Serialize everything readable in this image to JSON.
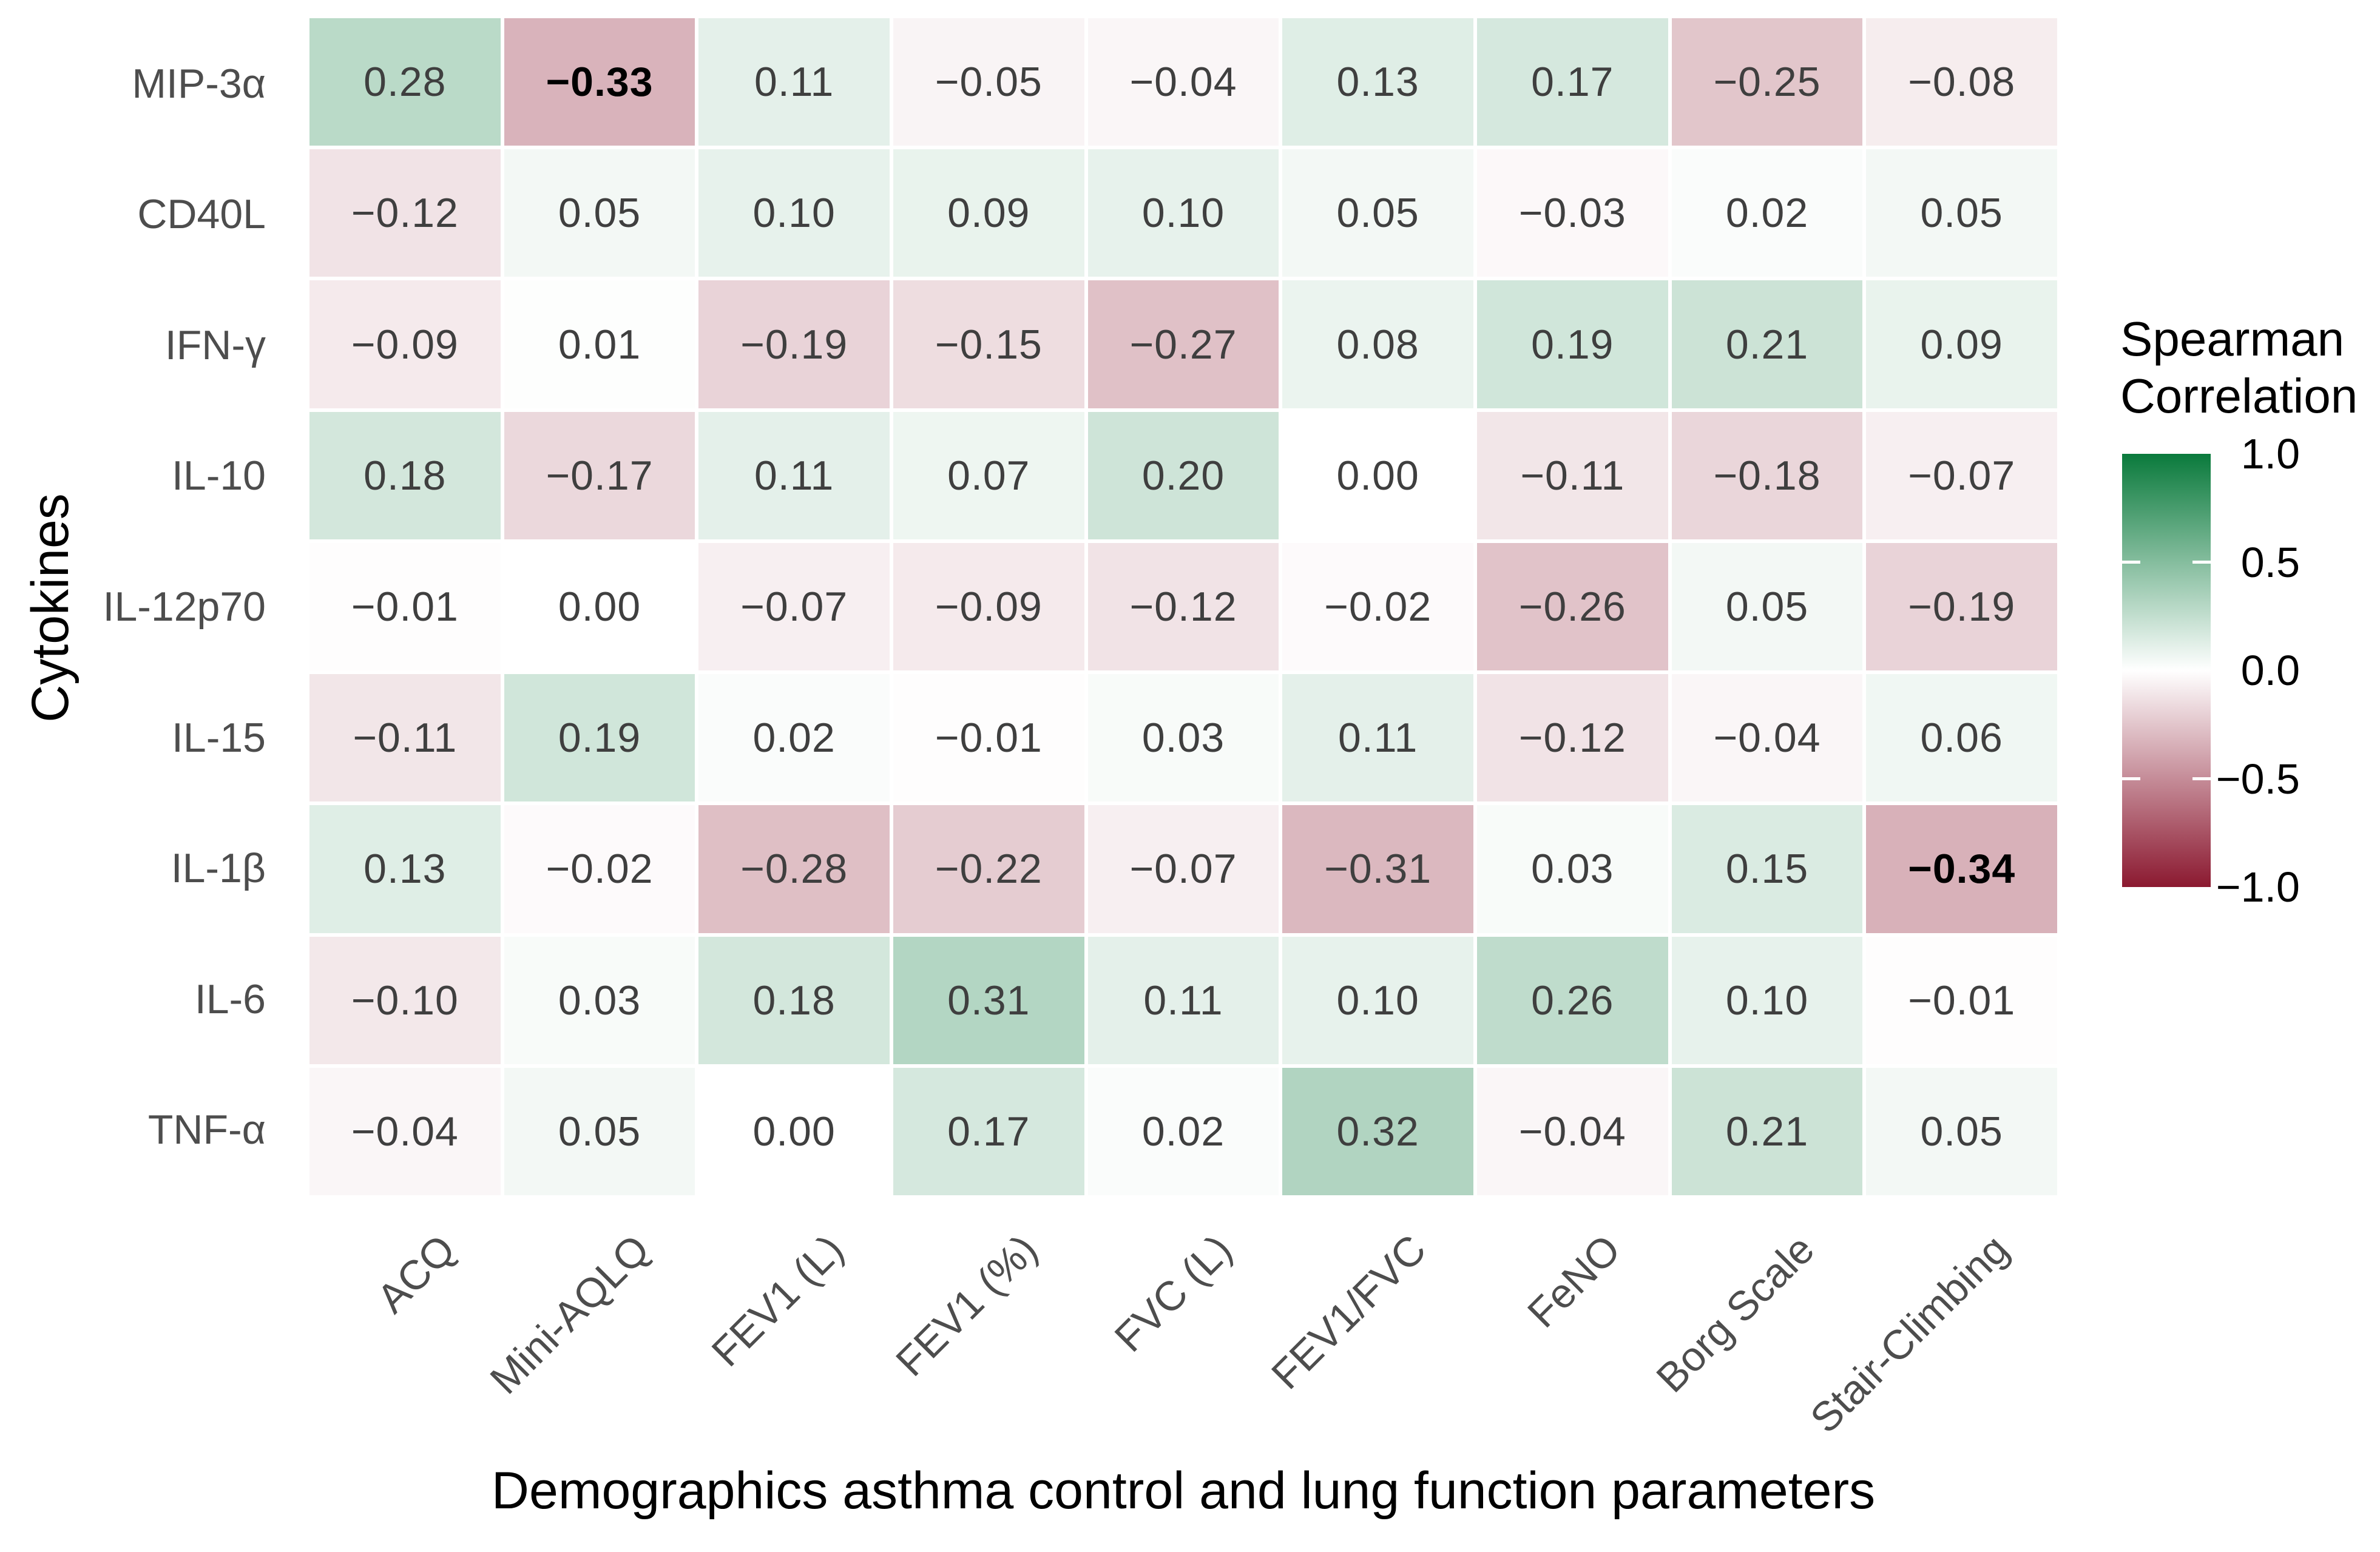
{
  "chart_data": {
    "type": "heatmap",
    "xlabel": "Demographics asthma control and lung function parameters",
    "ylabel": "Cytokines",
    "columns": [
      "ACQ",
      "Mini-AQLQ",
      "FEV1 (L)",
      "FEV1 (%)",
      "FVC (L)",
      "FEV1/FVC",
      "FeNO",
      "Borg Scale",
      "Stair-Climbing"
    ],
    "rows": [
      "MIP-3α",
      "CD40L",
      "IFN-γ",
      "IL-10",
      "IL-12p70",
      "IL-15",
      "IL-1β",
      "IL-6",
      "TNF-α"
    ],
    "values": [
      [
        0.28,
        -0.33,
        0.11,
        -0.05,
        -0.04,
        0.13,
        0.17,
        -0.25,
        -0.08
      ],
      [
        -0.12,
        0.05,
        0.1,
        0.09,
        0.1,
        0.05,
        -0.03,
        0.02,
        0.05
      ],
      [
        -0.09,
        0.01,
        -0.19,
        -0.15,
        -0.27,
        0.08,
        0.19,
        0.21,
        0.09
      ],
      [
        0.18,
        -0.17,
        0.11,
        0.07,
        0.2,
        0.0,
        -0.11,
        -0.18,
        -0.07
      ],
      [
        -0.01,
        0.0,
        -0.07,
        -0.09,
        -0.12,
        -0.02,
        -0.26,
        0.05,
        -0.19
      ],
      [
        -0.11,
        0.19,
        0.02,
        -0.01,
        0.03,
        0.11,
        -0.12,
        -0.04,
        0.06
      ],
      [
        0.13,
        -0.02,
        -0.28,
        -0.22,
        -0.07,
        -0.31,
        0.03,
        0.15,
        -0.34
      ],
      [
        -0.1,
        0.03,
        0.18,
        0.31,
        0.11,
        0.1,
        0.26,
        0.1,
        -0.01
      ],
      [
        -0.04,
        0.05,
        0.0,
        0.17,
        0.02,
        0.32,
        -0.04,
        0.21,
        0.05
      ]
    ],
    "bold_cells": [
      [
        0,
        1
      ],
      [
        6,
        8
      ]
    ],
    "legend": {
      "title_lines": [
        "Spearman",
        "Correlation"
      ],
      "ticks": [
        1.0,
        0.5,
        0.0,
        -0.5,
        -1.0
      ],
      "tick_labels": [
        "1.0",
        "0.5",
        "0.0",
        "−0.5",
        "−1.0"
      ],
      "range": [
        -1.0,
        1.0
      ],
      "position": "right"
    },
    "colors": {
      "high": "#0a7a3c",
      "mid": "#ffffff",
      "low": "#8b1930",
      "value_text": "#3f3f3f",
      "bold_value_text": "#000000",
      "axis_tick_text": "#4d4d4d",
      "axis_title_text": "#000000"
    },
    "grid": false
  }
}
